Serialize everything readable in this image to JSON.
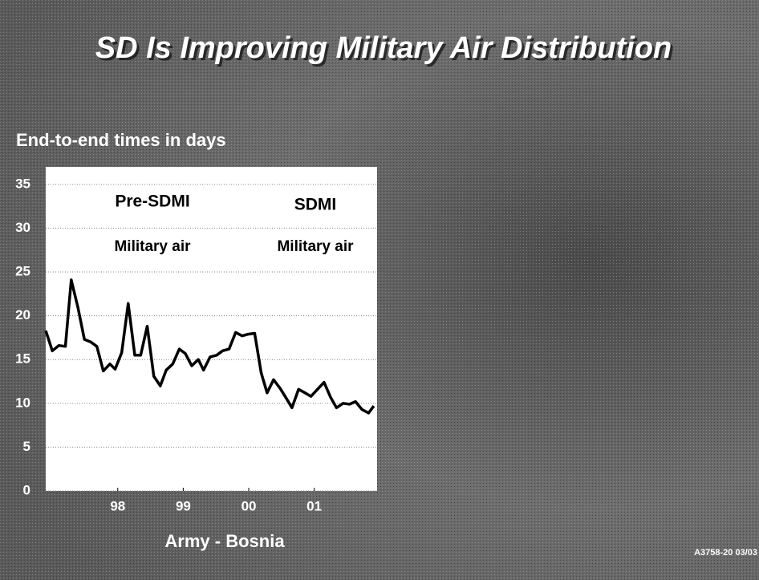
{
  "chart_data": {
    "type": "line",
    "title": "SD Is Improving Military Air Distribution",
    "ylabel": "End-to-end times in days",
    "xlabel": "Army - Bosnia",
    "annotations": [
      "Pre-SDMI",
      "Military air",
      "SDMI",
      "Military air"
    ],
    "footnote": "A3758-20 03/03",
    "x": [
      1996.9,
      1997.0,
      1997.1,
      1997.2,
      1997.29,
      1997.39,
      1997.49,
      1997.59,
      1997.68,
      1997.78,
      1997.88,
      1997.96,
      1998.06,
      1998.16,
      1998.26,
      1998.35,
      1998.45,
      1998.55,
      1998.65,
      1998.74,
      1998.84,
      1998.94,
      1999.03,
      1999.13,
      1999.23,
      1999.31,
      1999.41,
      1999.51,
      1999.6,
      1999.7,
      1999.8,
      1999.9,
      1999.99,
      2000.09,
      2000.19,
      2000.28,
      2000.38,
      2000.48,
      2000.58,
      2000.66,
      2000.76,
      2000.86,
      2000.95,
      2001.05,
      2001.15,
      2001.25,
      2001.34,
      2001.44,
      2001.54,
      2001.63,
      2001.73,
      2001.83,
      2001.91
    ],
    "values": [
      18.3,
      16,
      16.6,
      16.5,
      24.1,
      21,
      17.3,
      17,
      16.5,
      13.7,
      14.5,
      13.9,
      15.8,
      21.4,
      15.5,
      15.5,
      18.8,
      13.1,
      12,
      13.8,
      14.5,
      16.2,
      15.7,
      14.3,
      15,
      13.8,
      15.3,
      15.5,
      16,
      16.2,
      18.1,
      17.7,
      17.9,
      18,
      13.5,
      11.2,
      12.7,
      11.7,
      10.5,
      9.5,
      11.6,
      11.2,
      10.8,
      11.6,
      12.4,
      10.7,
      9.5,
      10,
      9.9,
      10.2,
      9.3,
      8.9,
      9.7
    ],
    "color": "#000000",
    "xlim": [
      1996.9,
      2001.96
    ],
    "xticks": [
      {
        "value": 1998,
        "label": "98"
      },
      {
        "value": 1999,
        "label": "99"
      },
      {
        "value": 2000,
        "label": "00"
      },
      {
        "value": 2001,
        "label": "01"
      }
    ],
    "ylim": [
      0,
      37
    ],
    "yticks": [
      0,
      5,
      10,
      15,
      20,
      25,
      30,
      35
    ],
    "grid": true
  }
}
